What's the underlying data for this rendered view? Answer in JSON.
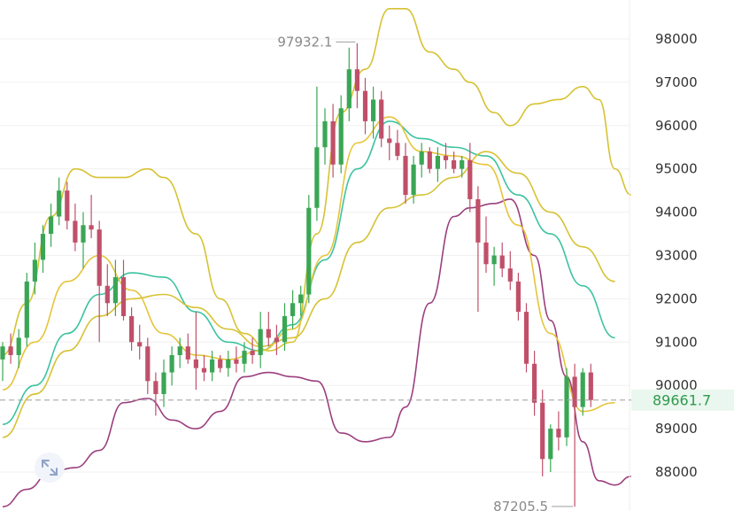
{
  "chart_data": {
    "type": "candlestick",
    "ylim": [
      87100,
      98900
    ],
    "y_ticks": [
      "98000",
      "97000",
      "96000",
      "95000",
      "94000",
      "93000",
      "92000",
      "91000",
      "90000",
      "89000",
      "88000"
    ],
    "current_price": "89661.7",
    "annotations": {
      "high": "97932.1",
      "low": "87205.5"
    },
    "colors": {
      "up": "#3aa655",
      "down": "#c0506a",
      "ma_fast": "#e6c43a",
      "ma_mid": "#3cc3a0",
      "ma_slow": "#d6c234",
      "boll_upper": "#d6c234",
      "boll_lower": "#9b3f7e",
      "price_line": "#9e9e9e"
    },
    "candles": [
      {
        "o": 90600,
        "h": 91000,
        "l": 90100,
        "c": 90900
      },
      {
        "o": 90900,
        "h": 91200,
        "l": 90500,
        "c": 90700
      },
      {
        "o": 90700,
        "h": 91300,
        "l": 90400,
        "c": 91100
      },
      {
        "o": 91100,
        "h": 92600,
        "l": 90900,
        "c": 92400
      },
      {
        "o": 92400,
        "h": 93300,
        "l": 92100,
        "c": 92900
      },
      {
        "o": 92900,
        "h": 93700,
        "l": 92600,
        "c": 93500
      },
      {
        "o": 93500,
        "h": 94200,
        "l": 93200,
        "c": 93900
      },
      {
        "o": 93900,
        "h": 94800,
        "l": 93700,
        "c": 94500
      },
      {
        "o": 94500,
        "h": 94700,
        "l": 93600,
        "c": 93800
      },
      {
        "o": 93800,
        "h": 94200,
        "l": 93100,
        "c": 93300
      },
      {
        "o": 93300,
        "h": 94000,
        "l": 92700,
        "c": 93700
      },
      {
        "o": 93700,
        "h": 94400,
        "l": 93400,
        "c": 93600
      },
      {
        "o": 93600,
        "h": 93800,
        "l": 91000,
        "c": 92300
      },
      {
        "o": 92300,
        "h": 92800,
        "l": 91600,
        "c": 91900
      },
      {
        "o": 91900,
        "h": 92900,
        "l": 91600,
        "c": 92500
      },
      {
        "o": 92500,
        "h": 92900,
        "l": 91500,
        "c": 91600
      },
      {
        "o": 91600,
        "h": 91800,
        "l": 90800,
        "c": 91000
      },
      {
        "o": 91000,
        "h": 91400,
        "l": 90600,
        "c": 90900
      },
      {
        "o": 90900,
        "h": 91100,
        "l": 89800,
        "c": 90100
      },
      {
        "o": 90100,
        "h": 90300,
        "l": 89300,
        "c": 89800
      },
      {
        "o": 89800,
        "h": 90600,
        "l": 89500,
        "c": 90300
      },
      {
        "o": 90300,
        "h": 90900,
        "l": 90000,
        "c": 90700
      },
      {
        "o": 90700,
        "h": 91100,
        "l": 90400,
        "c": 90900
      },
      {
        "o": 90900,
        "h": 91200,
        "l": 90500,
        "c": 90600
      },
      {
        "o": 90600,
        "h": 91700,
        "l": 89900,
        "c": 90400
      },
      {
        "o": 90400,
        "h": 90700,
        "l": 90100,
        "c": 90300
      },
      {
        "o": 90300,
        "h": 90800,
        "l": 90100,
        "c": 90600
      },
      {
        "o": 90600,
        "h": 90700,
        "l": 90300,
        "c": 90400
      },
      {
        "o": 90400,
        "h": 90800,
        "l": 90200,
        "c": 90600
      },
      {
        "o": 90600,
        "h": 90900,
        "l": 90300,
        "c": 90500
      },
      {
        "o": 90500,
        "h": 91000,
        "l": 90300,
        "c": 90800
      },
      {
        "o": 90800,
        "h": 91100,
        "l": 90500,
        "c": 90700
      },
      {
        "o": 90700,
        "h": 91700,
        "l": 90400,
        "c": 91300
      },
      {
        "o": 91300,
        "h": 91700,
        "l": 90900,
        "c": 91100
      },
      {
        "o": 91100,
        "h": 91400,
        "l": 90700,
        "c": 91000
      },
      {
        "o": 91000,
        "h": 91900,
        "l": 90800,
        "c": 91600
      },
      {
        "o": 91600,
        "h": 92200,
        "l": 91300,
        "c": 91900
      },
      {
        "o": 91900,
        "h": 92300,
        "l": 91600,
        "c": 92100
      },
      {
        "o": 92100,
        "h": 94400,
        "l": 91900,
        "c": 94100
      },
      {
        "o": 94100,
        "h": 96900,
        "l": 93800,
        "c": 95500
      },
      {
        "o": 95500,
        "h": 96400,
        "l": 95100,
        "c": 96100
      },
      {
        "o": 96100,
        "h": 96500,
        "l": 94800,
        "c": 95100
      },
      {
        "o": 95100,
        "h": 96700,
        "l": 94900,
        "c": 96400
      },
      {
        "o": 96400,
        "h": 97800,
        "l": 96100,
        "c": 97300
      },
      {
        "o": 97300,
        "h": 97900,
        "l": 96400,
        "c": 96800
      },
      {
        "o": 96800,
        "h": 97100,
        "l": 95800,
        "c": 96100
      },
      {
        "o": 96100,
        "h": 96900,
        "l": 95700,
        "c": 96600
      },
      {
        "o": 96600,
        "h": 96800,
        "l": 95500,
        "c": 95700
      },
      {
        "o": 95700,
        "h": 96000,
        "l": 95200,
        "c": 95600
      },
      {
        "o": 95600,
        "h": 95900,
        "l": 95200,
        "c": 95300
      },
      {
        "o": 95300,
        "h": 95600,
        "l": 94200,
        "c": 94400
      },
      {
        "o": 94400,
        "h": 95300,
        "l": 94200,
        "c": 95100
      },
      {
        "o": 95100,
        "h": 95600,
        "l": 94800,
        "c": 95400
      },
      {
        "o": 95400,
        "h": 95500,
        "l": 94900,
        "c": 95000
      },
      {
        "o": 95000,
        "h": 95500,
        "l": 94700,
        "c": 95300
      },
      {
        "o": 95300,
        "h": 95600,
        "l": 95000,
        "c": 95200
      },
      {
        "o": 95200,
        "h": 95400,
        "l": 94900,
        "c": 95000
      },
      {
        "o": 95000,
        "h": 95300,
        "l": 94800,
        "c": 95200
      },
      {
        "o": 95200,
        "h": 95600,
        "l": 94000,
        "c": 94300
      },
      {
        "o": 94300,
        "h": 94600,
        "l": 91700,
        "c": 93300
      },
      {
        "o": 93300,
        "h": 93900,
        "l": 92600,
        "c": 92800
      },
      {
        "o": 92800,
        "h": 93200,
        "l": 92300,
        "c": 93000
      },
      {
        "o": 93000,
        "h": 93300,
        "l": 92500,
        "c": 92700
      },
      {
        "o": 92700,
        "h": 93100,
        "l": 92200,
        "c": 92400
      },
      {
        "o": 92400,
        "h": 92600,
        "l": 91500,
        "c": 91700
      },
      {
        "o": 91700,
        "h": 91900,
        "l": 90300,
        "c": 90500
      },
      {
        "o": 90500,
        "h": 90800,
        "l": 89300,
        "c": 89600
      },
      {
        "o": 89600,
        "h": 89900,
        "l": 87900,
        "c": 88300
      },
      {
        "o": 88300,
        "h": 89100,
        "l": 88000,
        "c": 89000
      },
      {
        "o": 89000,
        "h": 89400,
        "l": 88500,
        "c": 88800
      },
      {
        "o": 88800,
        "h": 90400,
        "l": 88600,
        "c": 90200
      },
      {
        "o": 90200,
        "h": 90500,
        "l": 87200,
        "c": 89500
      },
      {
        "o": 89500,
        "h": 90400,
        "l": 89300,
        "c": 90300
      },
      {
        "o": 90300,
        "h": 90500,
        "l": 89500,
        "c": 89662
      }
    ],
    "lines": {
      "boll_upper": [
        [
          0,
          90700
        ],
        [
          3,
          91900
        ],
        [
          6,
          93900
        ],
        [
          9,
          95000
        ],
        [
          12,
          94800
        ],
        [
          15,
          94800
        ],
        [
          18,
          95000
        ],
        [
          20,
          94800
        ],
        [
          24,
          93500
        ],
        [
          27,
          92000
        ],
        [
          30,
          91200
        ],
        [
          33,
          90800
        ],
        [
          36,
          91000
        ],
        [
          39,
          93500
        ],
        [
          42,
          96300
        ],
        [
          45,
          97300
        ],
        [
          48,
          98700
        ],
        [
          50,
          98700
        ],
        [
          53,
          97700
        ],
        [
          56,
          97300
        ],
        [
          58,
          97000
        ],
        [
          61,
          96300
        ],
        [
          63,
          96000
        ],
        [
          66,
          96500
        ],
        [
          69,
          96600
        ],
        [
          72,
          96900
        ],
        [
          74,
          96600
        ],
        [
          76,
          95000
        ],
        [
          78,
          94400
        ]
      ],
      "boll_lower": [
        [
          0,
          87200
        ],
        [
          3,
          87600
        ],
        [
          6,
          88000
        ],
        [
          9,
          88100
        ],
        [
          12,
          88500
        ],
        [
          15,
          89600
        ],
        [
          18,
          89700
        ],
        [
          21,
          89200
        ],
        [
          24,
          89000
        ],
        [
          27,
          89400
        ],
        [
          30,
          90200
        ],
        [
          33,
          90300
        ],
        [
          36,
          90200
        ],
        [
          39,
          90100
        ],
        [
          42,
          88900
        ],
        [
          45,
          88700
        ],
        [
          48,
          88800
        ],
        [
          50,
          89500
        ],
        [
          53,
          91900
        ],
        [
          56,
          93900
        ],
        [
          58,
          94100
        ],
        [
          61,
          94200
        ],
        [
          63,
          94300
        ],
        [
          66,
          93000
        ],
        [
          68,
          91500
        ],
        [
          70,
          90200
        ],
        [
          72,
          88700
        ],
        [
          74,
          87800
        ],
        [
          76,
          87700
        ],
        [
          78,
          87900
        ]
      ],
      "ma_mid": [
        [
          0,
          89100
        ],
        [
          4,
          90000
        ],
        [
          8,
          91200
        ],
        [
          12,
          92100
        ],
        [
          16,
          92600
        ],
        [
          20,
          92500
        ],
        [
          24,
          91700
        ],
        [
          28,
          91000
        ],
        [
          32,
          90800
        ],
        [
          36,
          91400
        ],
        [
          40,
          92900
        ],
        [
          44,
          95000
        ],
        [
          48,
          96100
        ],
        [
          52,
          95700
        ],
        [
          56,
          95500
        ],
        [
          60,
          95300
        ],
        [
          64,
          94400
        ],
        [
          68,
          93500
        ],
        [
          72,
          92300
        ],
        [
          76,
          91100
        ]
      ],
      "ma_slow": [
        [
          0,
          88800
        ],
        [
          4,
          89800
        ],
        [
          8,
          90800
        ],
        [
          12,
          91600
        ],
        [
          16,
          92000
        ],
        [
          20,
          92100
        ],
        [
          24,
          91800
        ],
        [
          28,
          91300
        ],
        [
          32,
          90900
        ],
        [
          36,
          91100
        ],
        [
          40,
          92000
        ],
        [
          44,
          93300
        ],
        [
          48,
          94100
        ],
        [
          52,
          94400
        ],
        [
          56,
          94800
        ],
        [
          60,
          95400
        ],
        [
          64,
          94900
        ],
        [
          68,
          94000
        ],
        [
          72,
          93200
        ],
        [
          76,
          92400
        ]
      ],
      "ma_fast": [
        [
          0,
          89900
        ],
        [
          4,
          91000
        ],
        [
          8,
          92400
        ],
        [
          12,
          93000
        ],
        [
          16,
          92200
        ],
        [
          20,
          91200
        ],
        [
          24,
          90700
        ],
        [
          28,
          90600
        ],
        [
          32,
          90800
        ],
        [
          36,
          91300
        ],
        [
          40,
          93000
        ],
        [
          44,
          95600
        ],
        [
          48,
          96200
        ],
        [
          52,
          95400
        ],
        [
          56,
          95300
        ],
        [
          60,
          95100
        ],
        [
          64,
          93700
        ],
        [
          68,
          91200
        ],
        [
          72,
          89400
        ],
        [
          76,
          89600
        ]
      ]
    }
  }
}
